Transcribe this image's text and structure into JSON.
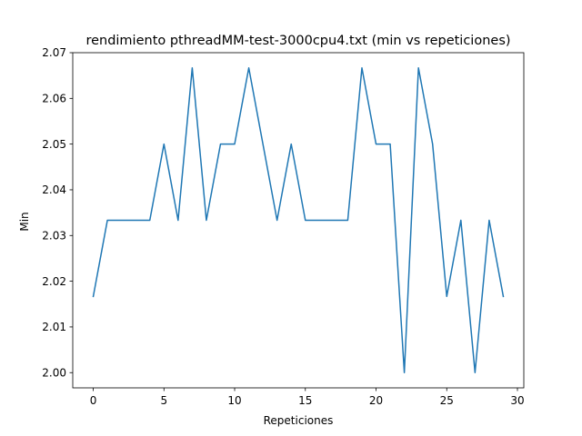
{
  "chart_data": {
    "type": "line",
    "title": "rendimiento pthreadMM-test-3000cpu4.txt (min vs repeticiones)",
    "xlabel": "Repeticiones",
    "ylabel": "Min",
    "xlim": [
      -1.45,
      30.45
    ],
    "ylim": [
      1.99667,
      2.07
    ],
    "xticks": [
      0,
      5,
      10,
      15,
      20,
      25,
      30
    ],
    "yticks": [
      2.0,
      2.01,
      2.02,
      2.03,
      2.04,
      2.05,
      2.06,
      2.07
    ],
    "ytick_labels": [
      "2.00",
      "2.01",
      "2.02",
      "2.03",
      "2.04",
      "2.05",
      "2.06",
      "2.07"
    ],
    "grid": false,
    "series": [
      {
        "color": "#1f77b4",
        "x": [
          0,
          1,
          2,
          3,
          4,
          5,
          6,
          7,
          8,
          9,
          10,
          11,
          12,
          13,
          14,
          15,
          16,
          17,
          18,
          19,
          20,
          21,
          22,
          23,
          24,
          25,
          26,
          27,
          28,
          29
        ],
        "y": [
          2.01667,
          2.03333,
          2.03333,
          2.03333,
          2.03333,
          2.05,
          2.03333,
          2.06667,
          2.03333,
          2.05,
          2.05,
          2.06667,
          2.05,
          2.03333,
          2.05,
          2.03333,
          2.03333,
          2.03333,
          2.03333,
          2.06667,
          2.05,
          2.05,
          2.0,
          2.06667,
          2.05,
          2.01667,
          2.03333,
          2.0,
          2.03333,
          2.01667
        ]
      }
    ]
  }
}
